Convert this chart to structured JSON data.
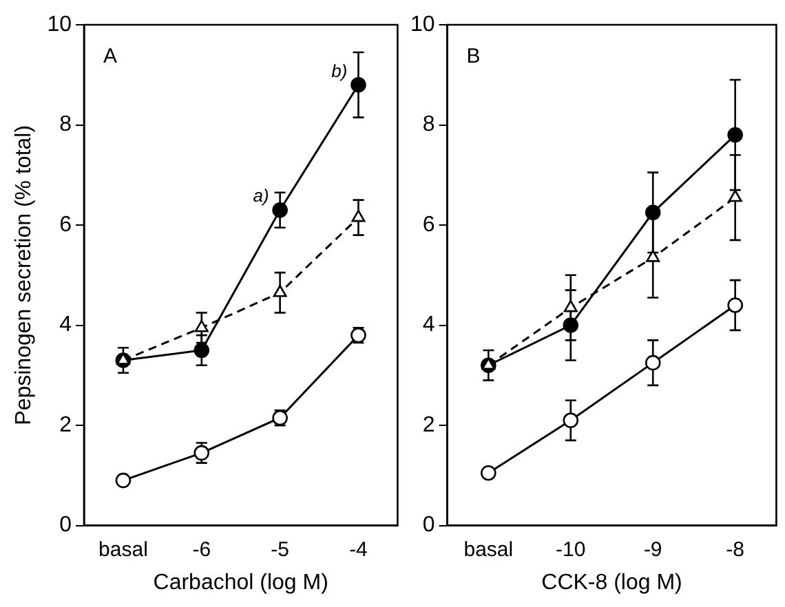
{
  "chart_data": [
    {
      "type": "line",
      "xlabel": "Carbachol (log M)",
      "ylabel": "Pepsinogen secretion (% total)",
      "categories": [
        "basal",
        "-6",
        "-5",
        "-4"
      ],
      "ylim": [
        0,
        10
      ],
      "yticks": [
        0,
        2,
        4,
        6,
        8,
        10
      ],
      "grid": false,
      "legend": false,
      "annotations": [
        "A",
        {
          "text": "a)",
          "x": "-5",
          "y": 6.3
        },
        {
          "text": "b)",
          "x": "-4",
          "y": 8.8
        }
      ],
      "series": [
        {
          "color": "#000000",
          "marker": "circle",
          "line_style": "solid",
          "values": [
            3.3,
            3.5,
            6.3,
            8.8
          ],
          "errors": [
            null,
            0.3,
            0.35,
            0.65
          ]
        },
        {
          "color": "#000000",
          "colors": [
            "#ffffff",
            "#ffffff",
            "#ffffff",
            "#ffffff"
          ],
          "marker": "triangle",
          "line_style": "dashed",
          "values": [
            3.3,
            3.95,
            4.65,
            6.15
          ],
          "errors": [
            0.25,
            0.3,
            0.4,
            0.35
          ]
        },
        {
          "color": "#000000",
          "colors": [
            "#ffffff",
            "#ffffff",
            "#ffffff",
            "#ffffff"
          ],
          "marker": "circle",
          "line_style": "solid",
          "values": [
            0.9,
            1.45,
            2.15,
            3.8
          ],
          "errors": [
            null,
            0.2,
            0.15,
            0.15
          ]
        }
      ]
    },
    {
      "type": "line",
      "xlabel": "CCK-8 (log M)",
      "categories": [
        "basal",
        "-10",
        "-9",
        "-8"
      ],
      "ylim": [
        0,
        10
      ],
      "yticks": [
        0,
        2,
        4,
        6,
        8,
        10
      ],
      "grid": false,
      "legend": false,
      "annotations": [
        "B"
      ],
      "series": [
        {
          "color": "#000000",
          "marker": "circle",
          "line_style": "solid",
          "values": [
            3.2,
            4.0,
            6.25,
            7.8
          ],
          "errors": [
            null,
            0.7,
            0.8,
            1.1
          ]
        },
        {
          "color": "#000000",
          "colors": [
            "#ffffff",
            "#ffffff",
            "#ffffff",
            "#ffffff"
          ],
          "marker": "triangle",
          "line_style": "dashed",
          "values": [
            3.2,
            4.35,
            5.35,
            6.55
          ],
          "errors": [
            0.3,
            0.65,
            0.8,
            0.85
          ]
        },
        {
          "color": "#000000",
          "colors": [
            "#ffffff",
            "#ffffff",
            "#ffffff",
            "#ffffff"
          ],
          "marker": "circle",
          "line_style": "solid",
          "values": [
            1.05,
            2.1,
            3.25,
            4.4
          ],
          "errors": [
            null,
            0.4,
            0.45,
            0.5
          ]
        }
      ]
    }
  ]
}
